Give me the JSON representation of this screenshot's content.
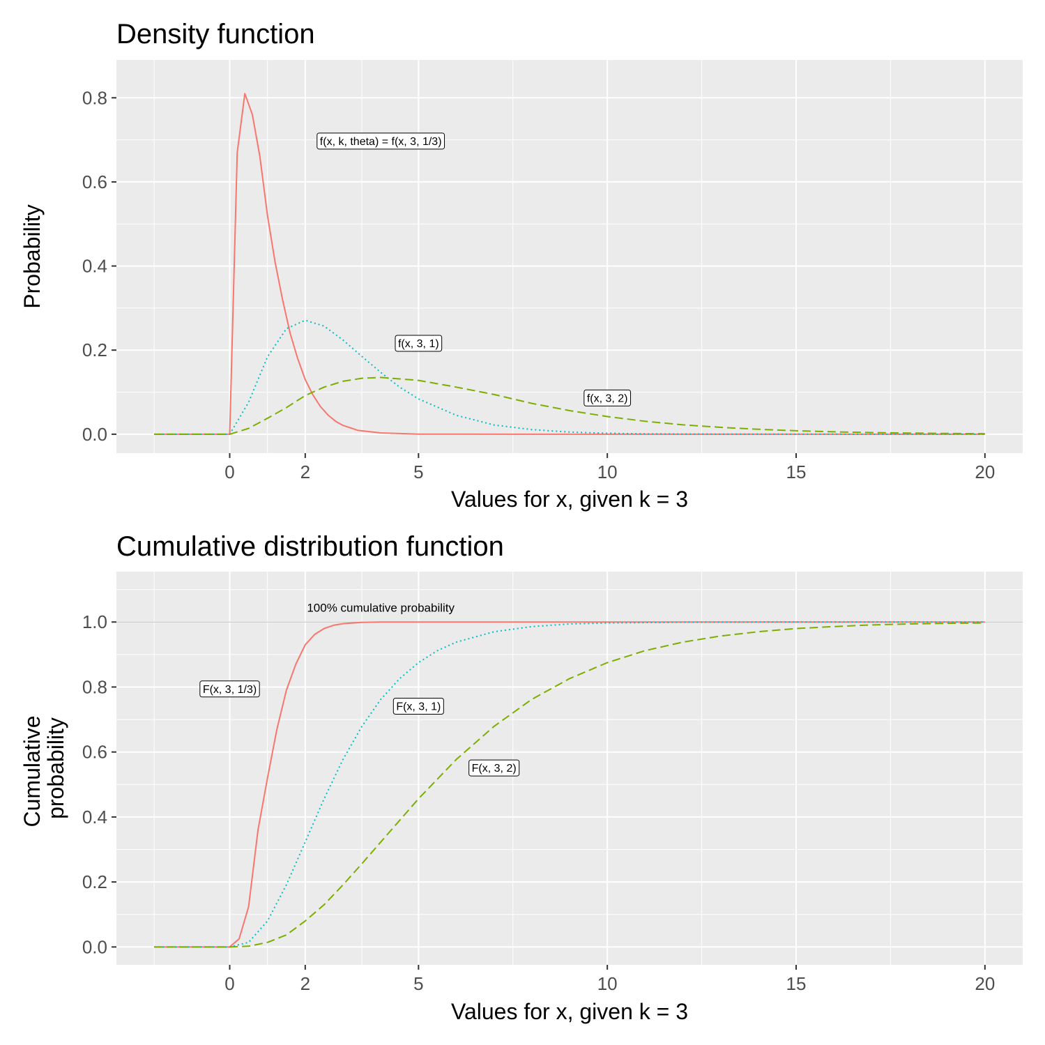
{
  "colors": {
    "red": "#f8766d",
    "green": "#7cae00",
    "cyan": "#00bfc4"
  },
  "chart_data": [
    {
      "type": "line",
      "title": "Density function",
      "xlabel": "Values for x, given k = 3",
      "ylabel": "Probability",
      "xlim": [
        -3.0,
        21.0
      ],
      "ylim": [
        -0.045,
        0.89
      ],
      "x_ticks": [
        0,
        2,
        5,
        10,
        15,
        20
      ],
      "x_minor": [
        -2,
        1,
        3.5,
        7.5,
        12.5,
        17.5
      ],
      "y_ticks": [
        0.0,
        0.2,
        0.4,
        0.6,
        0.8
      ],
      "y_tick_labels": [
        "0.0",
        "0.2",
        "0.4",
        "0.6",
        "0.8"
      ],
      "grid": true,
      "legend": "none",
      "series": [
        {
          "color": "#f8766d",
          "dash": "none",
          "x": [
            -2,
            -1,
            0,
            0.2,
            0.4,
            0.6,
            0.8,
            1.0,
            1.2,
            1.4,
            1.6,
            1.8,
            2.0,
            2.2,
            2.4,
            2.6,
            2.8,
            3.0,
            3.4,
            4,
            5,
            6,
            8,
            10,
            12,
            15,
            18,
            20
          ],
          "y": [
            0,
            0,
            0,
            0.67,
            0.81,
            0.76,
            0.66,
            0.52,
            0.41,
            0.32,
            0.24,
            0.18,
            0.13,
            0.094,
            0.066,
            0.046,
            0.031,
            0.021,
            0.009,
            0.003,
            0.0003,
            3e-05,
            0,
            0,
            0,
            0,
            0,
            0
          ]
        },
        {
          "color": "#00bfc4",
          "dash": "2,4",
          "x": [
            -2,
            -1,
            0,
            0.5,
            1.0,
            1.5,
            2.0,
            2.5,
            3.0,
            3.5,
            4.0,
            4.5,
            5.0,
            6,
            7,
            8,
            9,
            10,
            11,
            12,
            14,
            16,
            18,
            20
          ],
          "y": [
            0,
            0,
            0,
            0.076,
            0.184,
            0.251,
            0.271,
            0.257,
            0.224,
            0.185,
            0.147,
            0.112,
            0.084,
            0.045,
            0.022,
            0.011,
            0.005,
            0.0023,
            0.001,
            0.00044,
            8e-05,
            1e-05,
            0,
            0
          ],
          "label": "f(x, 3, 1)"
        },
        {
          "color": "#7cae00",
          "dash": "12,6",
          "x": [
            -2,
            -1,
            0,
            0.5,
            1,
            1.5,
            2,
            2.5,
            3,
            3.5,
            4,
            5,
            6,
            7,
            8,
            9,
            10,
            11,
            12,
            13,
            14,
            15,
            16,
            17,
            18,
            19,
            20
          ],
          "y": [
            0,
            0,
            0,
            0.0138,
            0.0379,
            0.0632,
            0.092,
            0.112,
            0.126,
            0.133,
            0.135,
            0.128,
            0.112,
            0.0944,
            0.0733,
            0.0562,
            0.0421,
            0.0307,
            0.0223,
            0.0164,
            0.0117,
            0.0082,
            0.0057,
            0.0039,
            0.0027,
            0.0018,
            0.0013
          ],
          "label": "f(x, 3, 2)"
        }
      ],
      "annotations": [
        {
          "text": "f(x, k, theta) = f(x, 3, 1/3)",
          "x": 4.0,
          "y": 0.698,
          "boxed": true
        },
        {
          "text": "f(x, 3, 1)",
          "x": 5.0,
          "y": 0.217,
          "boxed": true
        },
        {
          "text": "f(x, 3, 2)",
          "x": 10.0,
          "y": 0.087,
          "boxed": true
        }
      ]
    },
    {
      "type": "line",
      "title": "Cumulative distribution function",
      "xlabel": "Values for x, given k = 3",
      "ylabel": [
        "Cumulative",
        "probability"
      ],
      "xlim": [
        -3.0,
        21.0
      ],
      "ylim": [
        -0.055,
        1.155
      ],
      "x_ticks": [
        0,
        2,
        5,
        10,
        15,
        20
      ],
      "x_minor": [
        -2,
        1,
        3.5,
        7.5,
        12.5,
        17.5
      ],
      "y_ticks": [
        0.0,
        0.2,
        0.4,
        0.6,
        0.8,
        1.0
      ],
      "y_tick_labels": [
        "0.0",
        "0.2",
        "0.4",
        "0.6",
        "0.8",
        "1.0"
      ],
      "grid": true,
      "legend": "none",
      "reference_line": {
        "y": 1.0,
        "color": "#bbbbbb"
      },
      "series": [
        {
          "color": "#f8766d",
          "dash": "none",
          "x": [
            -2,
            -1,
            0,
            0.25,
            0.5,
            0.75,
            1.0,
            1.25,
            1.5,
            1.75,
            2.0,
            2.25,
            2.5,
            2.75,
            3.0,
            3.5,
            4,
            5,
            8,
            12,
            16,
            20
          ],
          "y": [
            0,
            0,
            0,
            0.025,
            0.124,
            0.36,
            0.52,
            0.67,
            0.79,
            0.87,
            0.93,
            0.962,
            0.98,
            0.99,
            0.995,
            0.999,
            1.0,
            1.0,
            1.0,
            1.0,
            1.0,
            1.0
          ]
        },
        {
          "color": "#00bfc4",
          "dash": "2,4",
          "x": [
            -2,
            -1,
            0,
            0.5,
            1,
            1.5,
            2,
            2.5,
            3,
            3.5,
            4,
            4.5,
            5,
            5.5,
            6,
            7,
            8,
            9,
            10,
            12,
            15,
            20
          ],
          "y": [
            0,
            0,
            0,
            0.014,
            0.08,
            0.191,
            0.323,
            0.456,
            0.577,
            0.679,
            0.762,
            0.826,
            0.875,
            0.912,
            0.938,
            0.97,
            0.986,
            0.994,
            0.997,
            0.9995,
            1.0,
            1.0
          ],
          "label": "F(x, 3, 1)"
        },
        {
          "color": "#7cae00",
          "dash": "12,6",
          "x": [
            -2,
            -1,
            0,
            0.5,
            1,
            1.5,
            2,
            2.5,
            3,
            3.5,
            4,
            5,
            6,
            7,
            8,
            9,
            10,
            11,
            12,
            13,
            14,
            15,
            16,
            17,
            18,
            19,
            20
          ],
          "y": [
            0,
            0,
            0,
            0.0022,
            0.014,
            0.037,
            0.08,
            0.13,
            0.191,
            0.256,
            0.323,
            0.456,
            0.577,
            0.679,
            0.762,
            0.826,
            0.875,
            0.912,
            0.938,
            0.957,
            0.97,
            0.98,
            0.986,
            0.991,
            0.994,
            0.996,
            0.997
          ],
          "label": "F(x, 3, 2)"
        }
      ],
      "annotations": [
        {
          "text": "100% cumulative probability",
          "x": 4.0,
          "y": 1.045,
          "boxed": false
        },
        {
          "text": "F(x, 3, 1/3)",
          "x": 0.0,
          "y": 0.795,
          "boxed": true
        },
        {
          "text": "F(x, 3, 1)",
          "x": 5.0,
          "y": 0.742,
          "boxed": true
        },
        {
          "text": "F(x, 3, 2)",
          "x": 7.0,
          "y": 0.552,
          "boxed": true
        }
      ]
    }
  ]
}
